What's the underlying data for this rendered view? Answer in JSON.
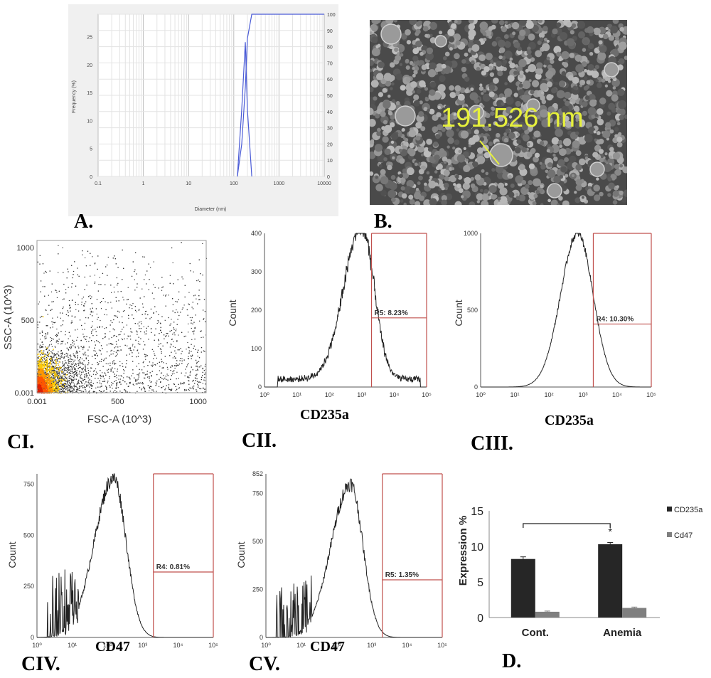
{
  "panels": {
    "A": "A.",
    "B": "B.",
    "CI": "CI.",
    "CII": "CII.",
    "CIII": "CIII.",
    "CIV": "CIV.",
    "CV": "CV.",
    "D": "D."
  },
  "colors": {
    "gate": "#c0504d",
    "dls": "#4a5bd6",
    "sem_text": "#e6f03c",
    "bar1": "#262626",
    "bar2": "#7f7f7f"
  },
  "chart_data": [
    {
      "id": "A",
      "type": "line",
      "xlabel": "Diameter (nm)",
      "ylabel": "Frequency (%)",
      "x_scale": "log",
      "xlim": [
        0.1,
        10000
      ],
      "x_ticks": [
        "0.1",
        "1",
        "10",
        "100",
        "1000",
        "10000"
      ],
      "y_ticks": [
        "0",
        "5",
        "10",
        "15",
        "20",
        "25"
      ],
      "y2_ticks": [
        "0",
        "10",
        "20",
        "30",
        "40",
        "50",
        "60",
        "70",
        "80",
        "90",
        "100"
      ],
      "ylim": [
        0,
        29
      ],
      "y2lim": [
        0,
        100
      ],
      "series": [
        {
          "x": [
            120,
            150,
            180,
            200,
            250
          ],
          "y": [
            0,
            12,
            24,
            12,
            0
          ]
        },
        {
          "x": [
            120,
            150,
            180,
            200,
            250,
            400,
            10000
          ],
          "y2": [
            0,
            20,
            55,
            85,
            100,
            100,
            100
          ]
        }
      ]
    },
    {
      "id": "B",
      "type": "image",
      "annotation": "191.526 nm"
    },
    {
      "id": "CI",
      "type": "scatter",
      "xlabel": "FSC-A (10^3)",
      "ylabel": "SSC-A (10^3)",
      "xlim": [
        0.001,
        1050
      ],
      "ylim": [
        0.001,
        1050
      ],
      "x_ticks": [
        "0.001",
        "500",
        "1000"
      ],
      "y_ticks": [
        "0.001",
        "500",
        "1000"
      ]
    },
    {
      "id": "CII",
      "type": "area",
      "xlabel": "CD235a",
      "ylabel": "Count",
      "x_scale": "log",
      "xlim": [
        1,
        100000
      ],
      "ylim": [
        0,
        400
      ],
      "x_ticks": [
        "10⁰",
        "10¹",
        "10²",
        "10³",
        "10⁴",
        "10⁵"
      ],
      "y_ticks": [
        "0",
        "100",
        "200",
        "300",
        "400"
      ],
      "gate": {
        "label": "R5: 8.23%",
        "x_from": 2000,
        "x_to": 100000,
        "y": 180
      },
      "peak": {
        "x": 1000,
        "y": 400
      }
    },
    {
      "id": "CIII",
      "type": "area",
      "xlabel": "CD235a",
      "ylabel": "Count",
      "x_scale": "log",
      "xlim": [
        1,
        100000
      ],
      "ylim": [
        0,
        1000
      ],
      "x_ticks": [
        "10⁰",
        "10¹",
        "10²",
        "10³",
        "10⁴",
        "10⁵"
      ],
      "y_ticks": [
        "0",
        "500",
        "1000"
      ],
      "gate": {
        "label": "R4: 10.30%",
        "x_from": 2000,
        "x_to": 100000,
        "y": 410
      },
      "peak": {
        "x": 700,
        "y": 1000
      }
    },
    {
      "id": "CIV",
      "type": "area",
      "xlabel": "CD47",
      "ylabel": "Count",
      "x_scale": "log",
      "xlim": [
        1,
        100000
      ],
      "ylim": [
        0,
        800
      ],
      "x_ticks": [
        "10⁰",
        "10¹",
        "10²",
        "10³",
        "10⁴",
        "10⁵"
      ],
      "y_ticks": [
        "0",
        "250",
        "500",
        "750"
      ],
      "gate": {
        "label": "R4: 0.81%",
        "x_from": 2000,
        "x_to": 100000,
        "y": 320
      },
      "peak": {
        "x": 150,
        "y": 780
      }
    },
    {
      "id": "CV",
      "type": "area",
      "xlabel": "CD47",
      "ylabel": "Count",
      "x_scale": "log",
      "xlim": [
        1,
        100000
      ],
      "ylim": [
        0,
        852
      ],
      "x_ticks": [
        "10⁰",
        "10¹",
        "10²",
        "10³",
        "10⁴",
        "10⁵"
      ],
      "y_ticks": [
        "0",
        "250",
        "500",
        "750",
        "852"
      ],
      "gate": {
        "label": "R5: 1.35%",
        "x_from": 2000,
        "x_to": 100000,
        "y": 300
      },
      "peak": {
        "x": 250,
        "y": 800
      }
    },
    {
      "id": "D",
      "type": "bar",
      "ylabel": "Expression %",
      "categories": [
        "Cont.",
        "Anemia"
      ],
      "ylim": [
        0,
        15
      ],
      "y_ticks": [
        "0",
        "5",
        "10",
        "15"
      ],
      "legend": "top-right",
      "series": [
        {
          "name": "CD235a",
          "values": [
            8.23,
            10.3
          ],
          "errors": [
            0.3,
            0.25
          ]
        },
        {
          "name": "Cd47",
          "values": [
            0.81,
            1.35
          ],
          "errors": [
            0.1,
            0.12
          ]
        }
      ],
      "annotation": "*"
    }
  ]
}
